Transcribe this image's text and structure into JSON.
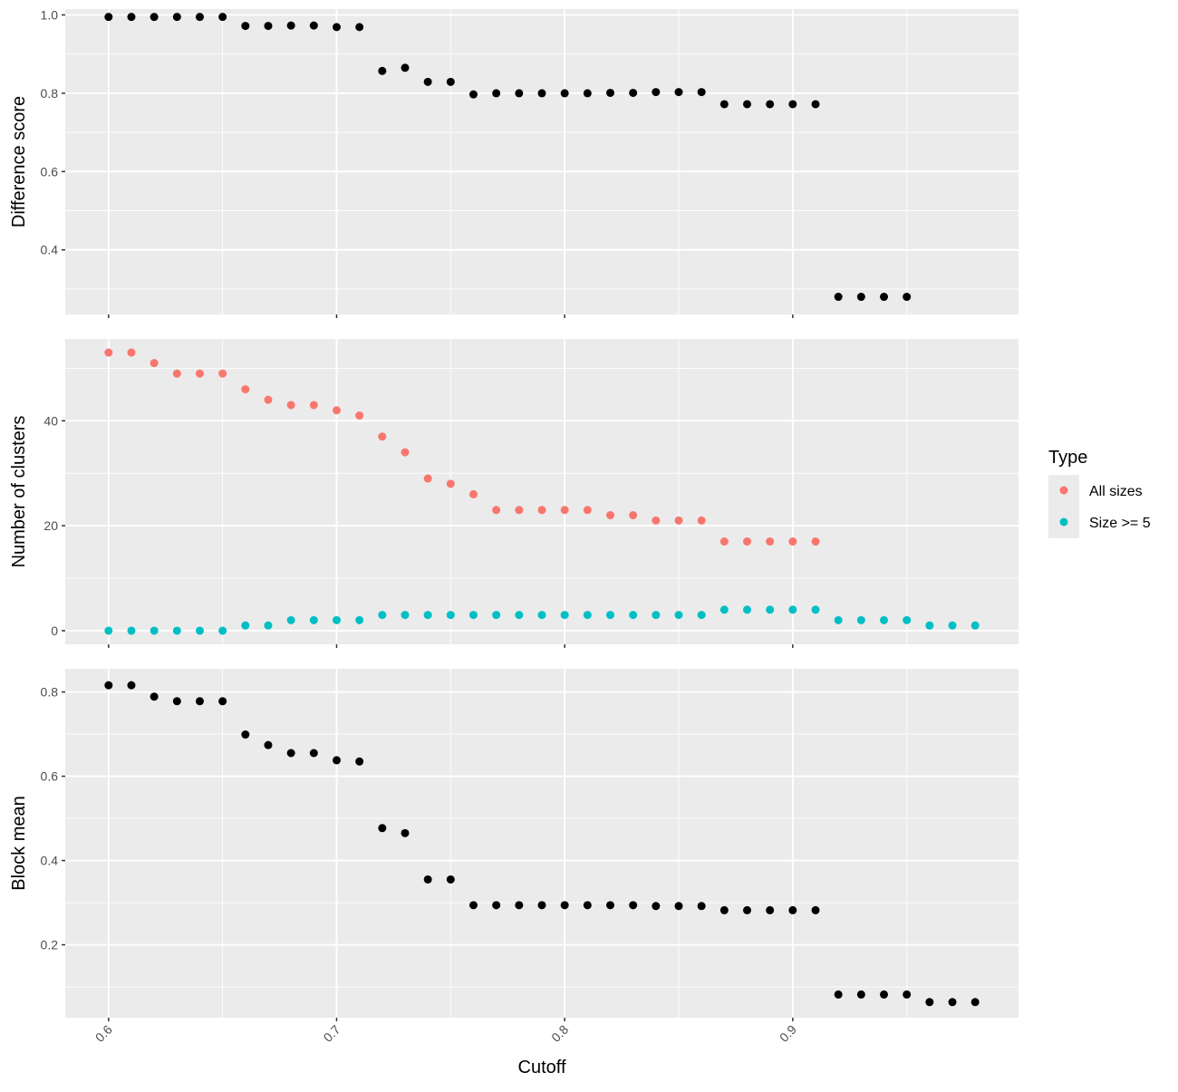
{
  "chart_data": {
    "type": "scatter",
    "xlabel": "Cutoff",
    "x_ticks": [
      "0.6",
      "0.7",
      "0.8",
      "0.9"
    ],
    "xlim": [
      0.581,
      0.999
    ],
    "legend": {
      "title": "Type",
      "placement": "right",
      "items": [
        {
          "label": "All sizes",
          "color": "#F8766D"
        },
        {
          "label": "Size >= 5",
          "color": "#00BFC4"
        }
      ]
    },
    "panels": [
      {
        "ylabel": "Difference score",
        "ylim": [
          0.235,
          1.015
        ],
        "y_ticks": [
          {
            "value": 0.4,
            "label": "0.4"
          },
          {
            "value": 0.6,
            "label": "0.6"
          },
          {
            "value": 0.8,
            "label": "0.8"
          },
          {
            "value": 1.0,
            "label": "1.0"
          }
        ],
        "series": [
          {
            "color": "#000000",
            "x": [
              0.6,
              0.61,
              0.62,
              0.63,
              0.64,
              0.65,
              0.66,
              0.67,
              0.68,
              0.69,
              0.7,
              0.71,
              0.72,
              0.73,
              0.74,
              0.75,
              0.76,
              0.77,
              0.78,
              0.79,
              0.8,
              0.81,
              0.82,
              0.83,
              0.84,
              0.85,
              0.86,
              0.87,
              0.88,
              0.89,
              0.9,
              0.91,
              0.92,
              0.93,
              0.94,
              0.95
            ],
            "y": [
              0.995,
              0.995,
              0.995,
              0.995,
              0.995,
              0.995,
              0.972,
              0.972,
              0.973,
              0.973,
              0.969,
              0.969,
              0.857,
              0.865,
              0.829,
              0.829,
              0.797,
              0.8,
              0.8,
              0.8,
              0.8,
              0.8,
              0.801,
              0.801,
              0.803,
              0.803,
              0.803,
              0.772,
              0.772,
              0.772,
              0.772,
              0.772,
              0.28,
              0.28,
              0.28,
              0.28
            ]
          }
        ]
      },
      {
        "ylabel": "Number of clusters",
        "ylim": [
          -2.6,
          55.6
        ],
        "y_ticks": [
          {
            "value": 0,
            "label": "0"
          },
          {
            "value": 20,
            "label": "20"
          },
          {
            "value": 40,
            "label": "40"
          }
        ],
        "series": [
          {
            "name": "All sizes",
            "color": "#F8766D",
            "x": [
              0.6,
              0.61,
              0.62,
              0.63,
              0.64,
              0.65,
              0.66,
              0.67,
              0.68,
              0.69,
              0.7,
              0.71,
              0.72,
              0.73,
              0.74,
              0.75,
              0.76,
              0.77,
              0.78,
              0.79,
              0.8,
              0.81,
              0.82,
              0.83,
              0.84,
              0.85,
              0.86,
              0.87,
              0.88,
              0.89,
              0.9,
              0.91
            ],
            "y": [
              53,
              53,
              51,
              49,
              49,
              49,
              46,
              44,
              43,
              43,
              42,
              41,
              37,
              34,
              29,
              28,
              26,
              23,
              23,
              23,
              23,
              23,
              22,
              22,
              21,
              21,
              21,
              17,
              17,
              17,
              17,
              17
            ]
          },
          {
            "name": "Size >= 5",
            "color": "#00BFC4",
            "x": [
              0.6,
              0.61,
              0.62,
              0.63,
              0.64,
              0.65,
              0.66,
              0.67,
              0.68,
              0.69,
              0.7,
              0.71,
              0.72,
              0.73,
              0.74,
              0.75,
              0.76,
              0.77,
              0.78,
              0.79,
              0.8,
              0.81,
              0.82,
              0.83,
              0.84,
              0.85,
              0.86,
              0.87,
              0.88,
              0.89,
              0.9,
              0.91,
              0.92,
              0.93,
              0.94,
              0.95,
              0.96,
              0.97,
              0.98
            ],
            "y": [
              0,
              0,
              0,
              0,
              0,
              0,
              1,
              1,
              2,
              2,
              2,
              2,
              3,
              3,
              3,
              3,
              3,
              3,
              3,
              3,
              3,
              3,
              3,
              3,
              3,
              3,
              3,
              4,
              4,
              4,
              4,
              4,
              2,
              2,
              2,
              2,
              1,
              1,
              1
            ]
          }
        ]
      },
      {
        "ylabel": "Block mean",
        "ylim": [
          0.027,
          0.855
        ],
        "y_ticks": [
          {
            "value": 0.2,
            "label": "0.2"
          },
          {
            "value": 0.4,
            "label": "0.4"
          },
          {
            "value": 0.6,
            "label": "0.6"
          },
          {
            "value": 0.8,
            "label": "0.8"
          }
        ],
        "series": [
          {
            "color": "#000000",
            "x": [
              0.6,
              0.61,
              0.62,
              0.63,
              0.64,
              0.65,
              0.66,
              0.67,
              0.68,
              0.69,
              0.7,
              0.71,
              0.72,
              0.73,
              0.74,
              0.75,
              0.76,
              0.77,
              0.78,
              0.79,
              0.8,
              0.81,
              0.82,
              0.83,
              0.84,
              0.85,
              0.86,
              0.87,
              0.88,
              0.89,
              0.9,
              0.91,
              0.92,
              0.93,
              0.94,
              0.95,
              0.96,
              0.97,
              0.98
            ],
            "y": [
              0.816,
              0.816,
              0.789,
              0.778,
              0.778,
              0.778,
              0.699,
              0.674,
              0.655,
              0.655,
              0.638,
              0.635,
              0.477,
              0.465,
              0.355,
              0.355,
              0.294,
              0.294,
              0.294,
              0.294,
              0.294,
              0.294,
              0.294,
              0.294,
              0.292,
              0.292,
              0.292,
              0.282,
              0.282,
              0.282,
              0.282,
              0.282,
              0.082,
              0.082,
              0.082,
              0.082,
              0.064,
              0.064,
              0.064
            ]
          }
        ]
      }
    ]
  }
}
